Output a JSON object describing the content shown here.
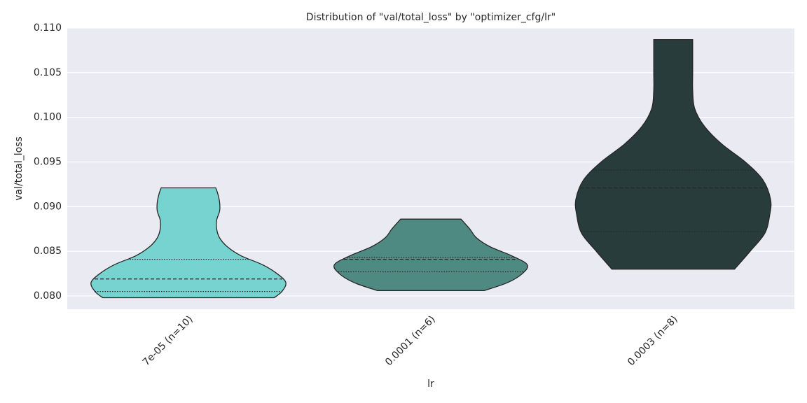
{
  "chart_data": {
    "type": "violin",
    "title": "Distribution of \"val/total_loss\" by \"optimizer_cfg/lr\"",
    "x_label": "lr",
    "y_label": "val/total_loss",
    "categories": [
      "7e-05 (n=10)",
      "0.0001 (n=6)",
      "0.0003 (n=8)"
    ],
    "ylim": [
      0.07851,
      0.11
    ],
    "yticks": [
      {
        "value": 0.08,
        "label": "0.080"
      },
      {
        "value": 0.085,
        "label": "0.085"
      },
      {
        "value": 0.09,
        "label": "0.090"
      },
      {
        "value": 0.095,
        "label": "0.095"
      },
      {
        "value": 0.1,
        "label": "0.100"
      },
      {
        "value": 0.105,
        "label": "0.105"
      },
      {
        "value": 0.11,
        "label": "0.110"
      }
    ],
    "grid": true,
    "violins": [
      {
        "color": "#76d3cf",
        "min": 0.0798,
        "q1": 0.0805,
        "median": 0.0819,
        "q3": 0.0841,
        "max": 0.0921,
        "y": [
          0.0798,
          0.0805,
          0.0815,
          0.0825,
          0.0835,
          0.0845,
          0.0855,
          0.0865,
          0.0875,
          0.0885,
          0.0895,
          0.0905,
          0.0915,
          0.0921
        ],
        "density": [
          0.88,
          0.96,
          1.0,
          0.91,
          0.76,
          0.54,
          0.4,
          0.32,
          0.29,
          0.29,
          0.32,
          0.32,
          0.3,
          0.28
        ]
      },
      {
        "color": "#4f8a82",
        "min": 0.0806,
        "q1": 0.0827,
        "median": 0.0841,
        "q3": 0.0843,
        "max": 0.0886,
        "y": [
          0.0806,
          0.0815,
          0.0825,
          0.0835,
          0.0845,
          0.0855,
          0.0865,
          0.0875,
          0.0886
        ],
        "density": [
          0.55,
          0.79,
          0.94,
          0.99,
          0.83,
          0.61,
          0.47,
          0.4,
          0.31
        ]
      },
      {
        "color": "#283c3b",
        "min": 0.083,
        "q1": 0.0872,
        "median": 0.0921,
        "q3": 0.0941,
        "max": 0.1087,
        "y": [
          0.083,
          0.085,
          0.087,
          0.089,
          0.0908,
          0.093,
          0.095,
          0.097,
          0.099,
          0.101,
          0.103,
          0.105,
          0.107,
          0.1087
        ],
        "density": [
          0.63,
          0.79,
          0.94,
          0.99,
          1.0,
          0.92,
          0.74,
          0.5,
          0.32,
          0.22,
          0.2,
          0.2,
          0.2,
          0.2
        ]
      }
    ]
  }
}
